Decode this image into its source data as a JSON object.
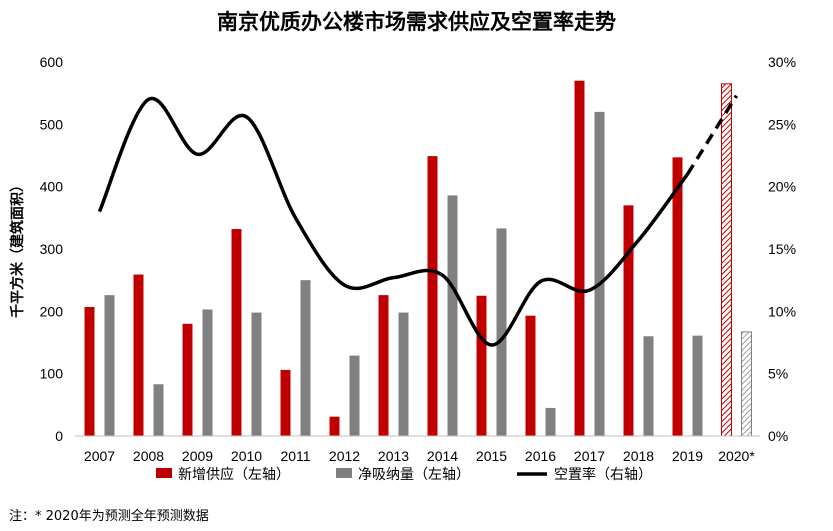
{
  "chart_data": {
    "type": "bar",
    "title": "南京优质办公楼市场需求供应及空置率走势",
    "categories": [
      "2007",
      "2008",
      "2009",
      "2010",
      "2011",
      "2012",
      "2013",
      "2014",
      "2015",
      "2016",
      "2017",
      "2018",
      "2019",
      "2020*"
    ],
    "ylabel": "千平方米（建筑面积）",
    "ylim": [
      0,
      600
    ],
    "yticks": [
      "0",
      "100",
      "200",
      "300",
      "400",
      "500",
      "600"
    ],
    "y2lim": [
      0,
      30
    ],
    "y2ticks": [
      "0%",
      "5%",
      "10%",
      "15%",
      "20%",
      "25%",
      "30%"
    ],
    "series": [
      {
        "name": "新增供应（左轴）",
        "type": "bar",
        "color": "#C00000",
        "values": [
          207,
          259,
          180,
          332,
          106,
          31,
          226,
          449,
          225,
          193,
          570,
          370,
          447,
          565
        ]
      },
      {
        "name": "净吸纳量（左轴）",
        "type": "bar",
        "color": "#808080",
        "values": [
          226,
          83,
          203,
          198,
          250,
          129,
          198,
          386,
          333,
          45,
          520,
          160,
          161,
          167
        ]
      },
      {
        "name": "空置率（右轴）",
        "type": "line",
        "axis": "right",
        "color": "#000000",
        "values": [
          18.0,
          27.0,
          22.6,
          25.6,
          17.5,
          12.1,
          12.7,
          12.9,
          7.3,
          12.4,
          11.7,
          15.7,
          21.0,
          27.3
        ]
      }
    ],
    "forecast_category": "2020*",
    "legend_position": "bottom",
    "grid": false
  },
  "note": "注：* 2020年为预测全年预测数据"
}
